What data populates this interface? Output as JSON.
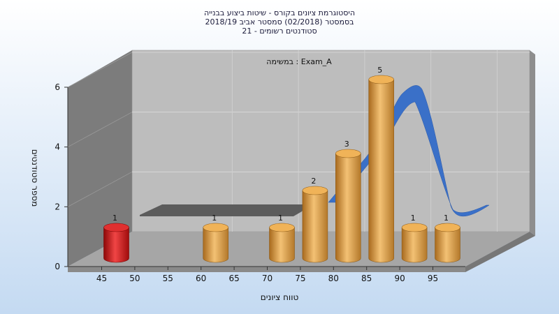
{
  "chart_data": {
    "type": "bar",
    "title_lines": [
      "היסטוגרמת ציונים בקורס - שיטות ביצוע בבנייה",
      "בסמסטר  (02/2018)  סמסטר אביב 2018/19",
      "סטודנטים רשומים - 21"
    ],
    "legend_label": "במשימה : Exam_A",
    "xlabel": "טווח ציונים",
    "ylabel": "מספר סטודנטים",
    "x_ticks": [
      "45",
      "50",
      "55",
      "60",
      "65",
      "70",
      "75",
      "80",
      "85",
      "90",
      "95"
    ],
    "y_ticks": [
      "0",
      "2",
      "4",
      "6"
    ],
    "ylim": [
      0,
      6
    ],
    "bars": [
      {
        "x": 45,
        "value": 1,
        "label": "1",
        "color": "#cc1111"
      },
      {
        "x": 60,
        "value": 1,
        "label": "1",
        "color": "#e0a040"
      },
      {
        "x": 70,
        "value": 1,
        "label": "1",
        "color": "#e0a040"
      },
      {
        "x": 75,
        "value": 2,
        "label": "2",
        "color": "#e0a040"
      },
      {
        "x": 80,
        "value": 3,
        "label": "3",
        "color": "#e0a040"
      },
      {
        "x": 85,
        "value": 5,
        "label": "5",
        "color": "#e0a040"
      },
      {
        "x": 90,
        "value": 1,
        "label": "1",
        "color": "#e0a040"
      },
      {
        "x": 95,
        "value": 1,
        "label": "1",
        "color": "#e0a040"
      }
    ],
    "curve_color": "#3a70c8",
    "failing_bar_color": "#cc1111",
    "bar_color": "#e0a040",
    "grid": true
  }
}
